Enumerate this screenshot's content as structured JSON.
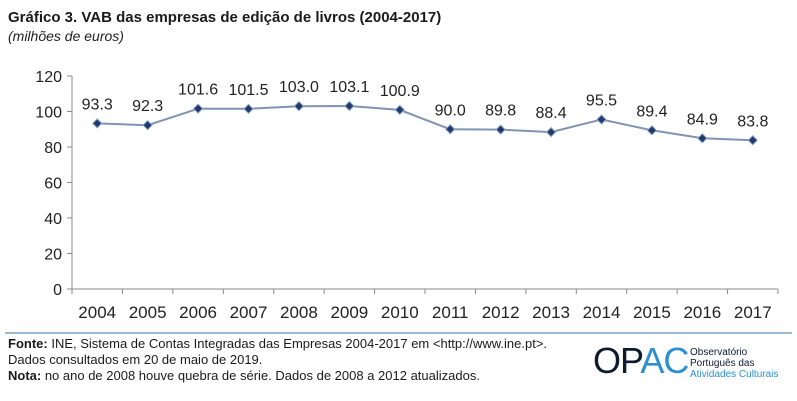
{
  "header": {
    "title": "Gráfico 3. VAB das empresas de edição de livros (2004-2017)",
    "subtitle": "(milhões de euros)"
  },
  "chart_data": {
    "type": "line",
    "categories": [
      "2004",
      "2005",
      "2006",
      "2007",
      "2008",
      "2009",
      "2010",
      "2011",
      "2012",
      "2013",
      "2014",
      "2015",
      "2016",
      "2017"
    ],
    "series": [
      {
        "values": [
          93.3,
          92.3,
          101.6,
          101.5,
          103.0,
          103.1,
          100.9,
          90.0,
          89.8,
          88.4,
          95.5,
          89.4,
          84.9,
          83.8
        ]
      }
    ],
    "data_labels": [
      "93.3",
      "92.3",
      "101.6",
      "101.5",
      "103.0",
      "103.1",
      "100.9",
      "90.0",
      "89.8",
      "88.4",
      "95.5",
      "89.4",
      "84.9",
      "83.8"
    ],
    "yticks": [
      "0",
      "20",
      "40",
      "60",
      "80",
      "100",
      "120"
    ],
    "ylim": [
      0,
      120
    ],
    "grid": false,
    "line_color": "#7f93b3",
    "marker_color": "#1f3a6b",
    "marker": "diamond"
  },
  "footer": {
    "source_label": "Fonte:",
    "source_text": " INE, Sistema de Contas Integradas das Empresas 2004-2017 em <http://www.ine.pt>.",
    "consulted": "Dados consultados em 20 de maio de 2019.",
    "note_label": "Nota:",
    "note_text": " no ano de 2008 houve quebra de série. Dados de 2008 a 2012 atualizados."
  },
  "logo": {
    "word_part1": "OP",
    "word_part2": "AC",
    "line1": "Observatório",
    "line2": "Português das",
    "line3": "Atividades Culturais",
    "dark_color": "#0d1b2e",
    "accent_color": "#2b8fd0"
  }
}
